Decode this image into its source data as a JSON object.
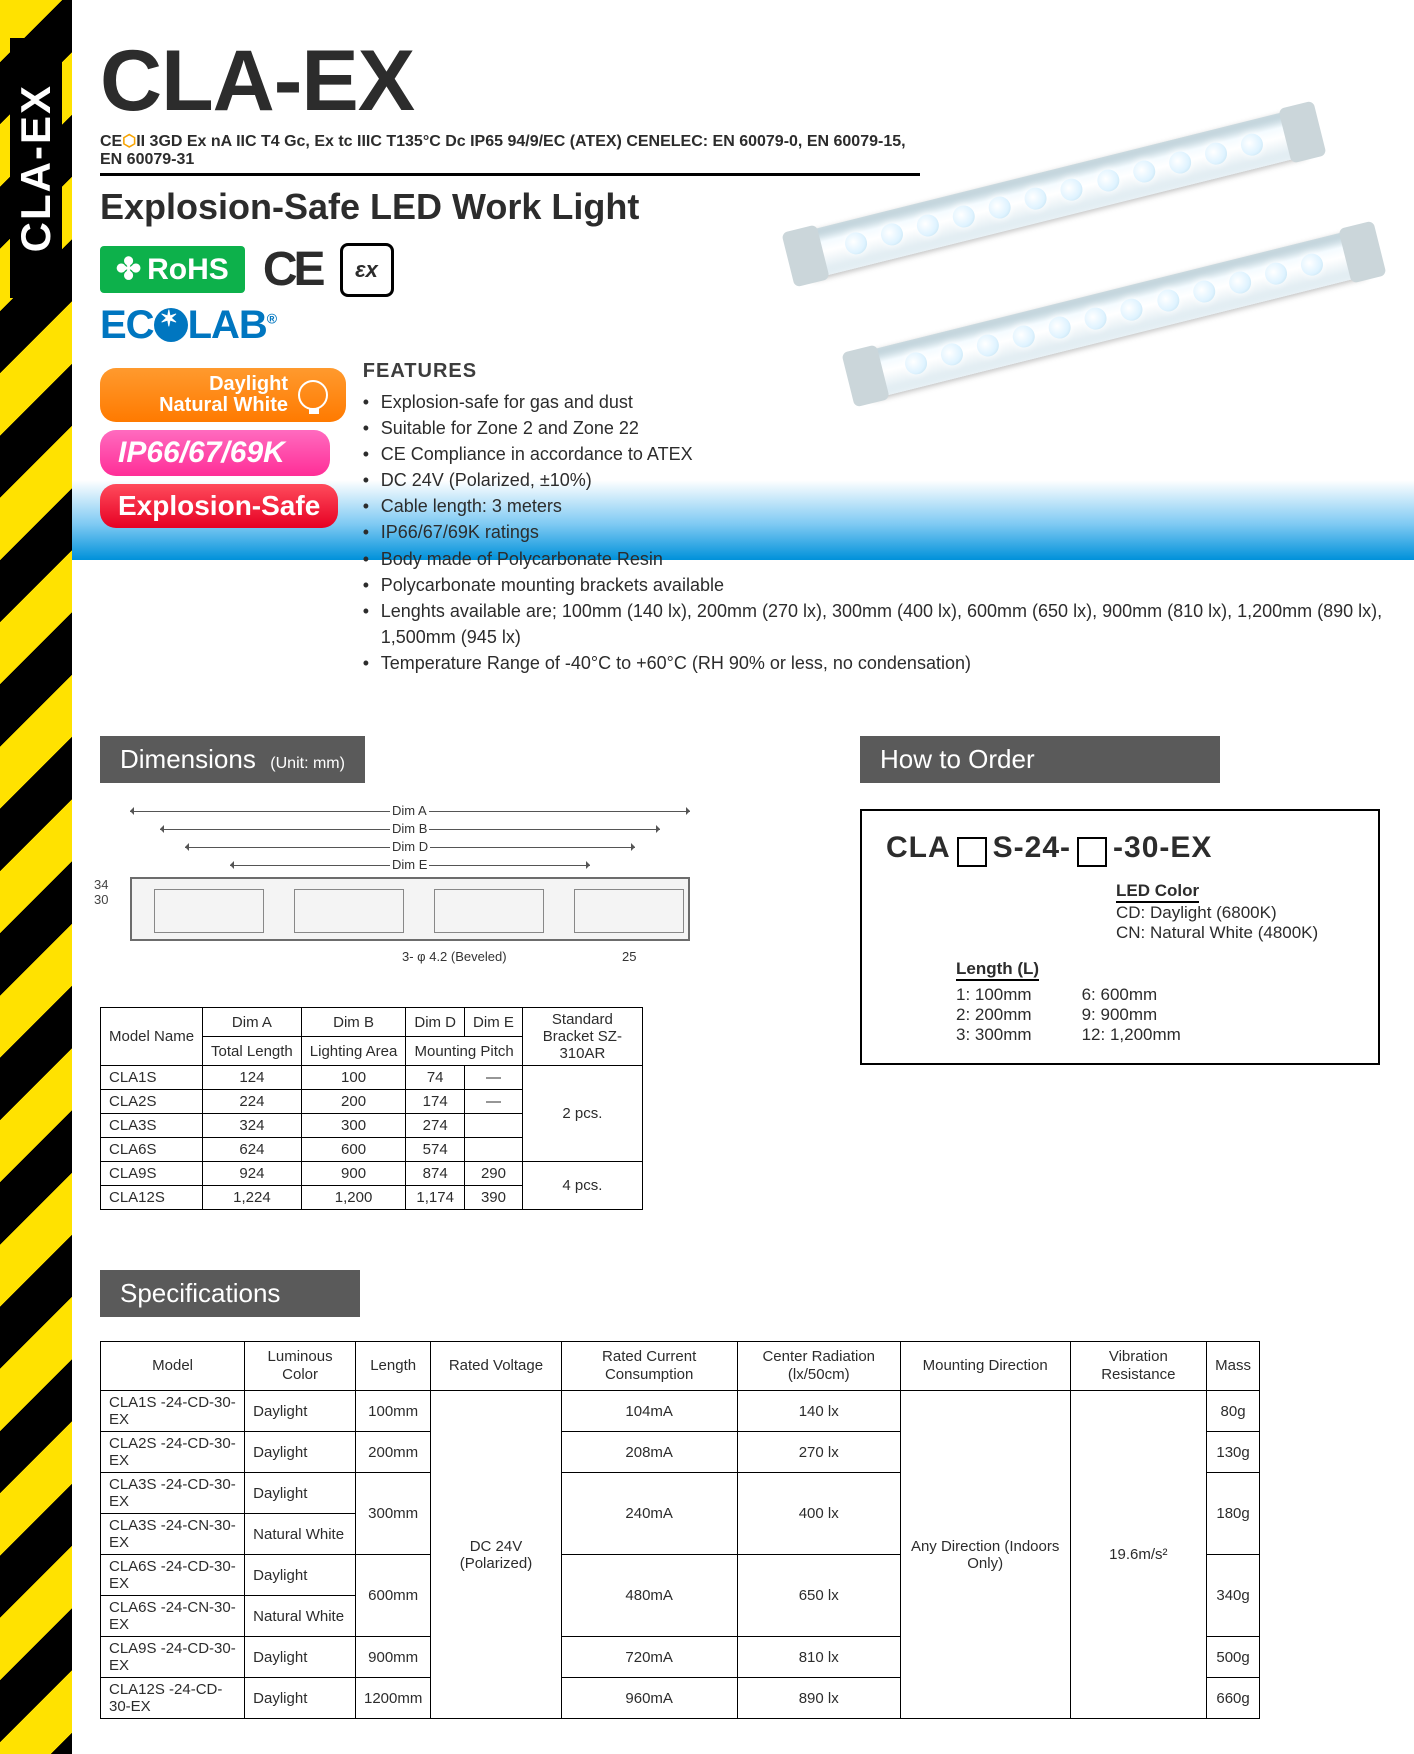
{
  "side_tab": "CLA-EX",
  "title": "CLA-EX",
  "cert_line_pre": "CE",
  "cert_line_post": "II 3GD Ex nA IIC T4 Gc, Ex tc IIIC T135°C Dc IP65 94/9/EC (ATEX) CENELEC: EN 60079-0, EN 60079-15, EN 60079-31",
  "subtitle": "Explosion-Safe LED Work Light",
  "rohs": "RoHS",
  "ecolab": "ECOLAB",
  "pills": {
    "daylight": "Daylight\nNatural White",
    "ip": "IP66/67/69K",
    "explosion": "Explosion-Safe"
  },
  "features_title": "FEATURES",
  "features": [
    "Explosion-safe for gas and dust",
    "Suitable for Zone 2 and Zone 22",
    "CE Compliance in accordance to ATEX",
    "DC 24V (Polarized, ±10%)",
    "Cable length: 3 meters",
    "IP66/67/69K ratings",
    "Body made of Polycarbonate Resin",
    "Polycarbonate mounting brackets available",
    "Lenghts available are; 100mm (140 lx), 200mm (270 lx), 300mm (400 lx), 600mm (650 lx), 900mm (810 lx), 1,200mm (890 lx), 1,500mm (945 lx)",
    "Temperature Range of -40°C to +60°C  (RH 90% or less, no condensation)"
  ],
  "dimensions_title": "Dimensions",
  "dimensions_unit": "(Unit: mm)",
  "diagram": {
    "labels": {
      "a": "Dim A",
      "b": "Dim B",
      "d": "Dim D",
      "e": "Dim E"
    },
    "side_h": "34",
    "side_w": "30",
    "hole": "3- φ 4.2 (Beveled)",
    "tab": "25"
  },
  "dim_table": {
    "headers": {
      "model": "Model Name",
      "a": "Dim A",
      "aSub": "Total Length",
      "b": "Dim B",
      "bSub": "Lighting Area",
      "d": "Dim D",
      "e": "Dim E",
      "mp": "Mounting Pitch",
      "br": "Standard Bracket SZ-310AR"
    },
    "rows": [
      {
        "m": "CLA1S",
        "a": "124",
        "b": "100",
        "d": "74",
        "e": "—"
      },
      {
        "m": "CLA2S",
        "a": "224",
        "b": "200",
        "d": "174",
        "e": "—"
      },
      {
        "m": "CLA3S",
        "a": "324",
        "b": "300",
        "d": "274",
        "e": ""
      },
      {
        "m": "CLA6S",
        "a": "624",
        "b": "600",
        "d": "574",
        "e": ""
      },
      {
        "m": "CLA9S",
        "a": "924",
        "b": "900",
        "d": "874",
        "e": "290"
      },
      {
        "m": "CLA12S",
        "a": "1,224",
        "b": "1,200",
        "d": "1,174",
        "e": "390"
      }
    ],
    "br2": "2 pcs.",
    "br4": "4 pcs."
  },
  "how_title": "How to Order",
  "order": {
    "pattern_pre": "CLA",
    "pattern_mid": "S-24-",
    "pattern_post": "-30-EX",
    "led_hdr": "LED Color",
    "led_opts": [
      "CD: Daylight (6800K)",
      "CN: Natural White (4800K)"
    ],
    "len_hdr": "Length (L)",
    "len_left": [
      "1: 100mm",
      "2: 200mm",
      "3: 300mm"
    ],
    "len_right": [
      "6: 600mm",
      "9: 900mm",
      "12: 1,200mm"
    ]
  },
  "spec_title": "Specifications",
  "spec_table": {
    "headers": [
      "Model",
      "Luminous Color",
      "Length",
      "Rated Voltage",
      "Rated Current Consumption",
      "Center Radiation (lx/50cm)",
      "Mounting Direction",
      "Vibration Resistance",
      "Mass"
    ],
    "voltage": "DC 24V (Polarized)",
    "mount": "Any Direction (Indoors Only)",
    "vib": "19.6m/s²",
    "rows": [
      {
        "m": "CLA1S -24-CD-30-EX",
        "c": "Daylight",
        "l": "100mm",
        "i": "104mA",
        "r": "140 lx",
        "w": "80g"
      },
      {
        "m": "CLA2S -24-CD-30-EX",
        "c": "Daylight",
        "l": "200mm",
        "i": "208mA",
        "r": "270 lx",
        "w": "130g"
      },
      {
        "m": "CLA3S -24-CD-30-EX",
        "c": "Daylight",
        "l": "300mm",
        "i": "240mA",
        "r": "400 lx",
        "w": "180g"
      },
      {
        "m": "CLA3S -24-CN-30-EX",
        "c": "Natural White",
        "l": "300mm",
        "i": "240mA",
        "r": "400 lx",
        "w": "180g"
      },
      {
        "m": "CLA6S -24-CD-30-EX",
        "c": "Daylight",
        "l": "600mm",
        "i": "480mA",
        "r": "650 lx",
        "w": "340g"
      },
      {
        "m": "CLA6S -24-CN-30-EX",
        "c": "Natural White",
        "l": "600mm",
        "i": "480mA",
        "r": "650 lx",
        "w": "340g"
      },
      {
        "m": "CLA9S -24-CD-30-EX",
        "c": "Daylight",
        "l": "900mm",
        "i": "720mA",
        "r": "810 lx",
        "w": "500g"
      },
      {
        "m": "CLA12S -24-CD-30-EX",
        "c": "Daylight",
        "l": "1200mm",
        "i": "960mA",
        "r": "890 lx",
        "w": "660g"
      }
    ]
  },
  "colors": {
    "hazard_yellow": "#ffe200",
    "hazard_black": "#000000",
    "rohs": "#0db14b",
    "ecolab": "#0076c0",
    "section_head": "#5a5a5a",
    "pill_orange": "#ff7a00",
    "pill_pink": "#ff2e97",
    "pill_red": "#e60023",
    "sky_band": "#7fcaf3"
  }
}
